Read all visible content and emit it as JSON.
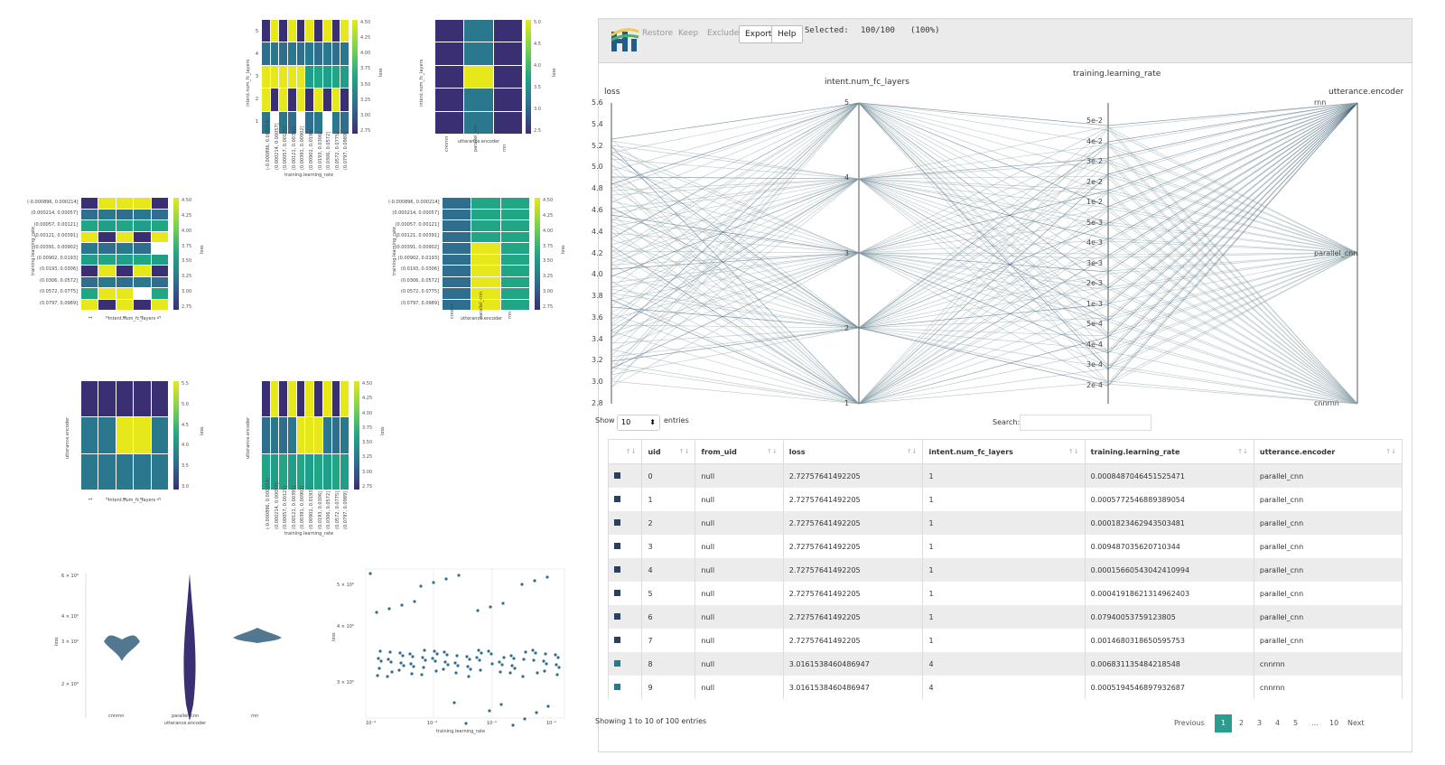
{
  "left_panels": {
    "p1": {
      "ylabel": "intent.num_fc_layers",
      "xlabel": "training.learning_rate",
      "cbar_label": "loss",
      "cbar_ticks": [
        "4.50",
        "4.25",
        "4.00",
        "3.75",
        "3.50",
        "3.25",
        "3.00",
        "2.75"
      ],
      "yticks": [
        "5",
        "4",
        "3",
        "2",
        "1"
      ],
      "xticks": [
        "(-0.000896, 0.000214]",
        "(0.000214, 0.00057]",
        "(0.00057, 0.00121]",
        "(0.00121, 0.00391]",
        "(0.00391, 0.00902]",
        "(0.00902, 0.0193]",
        "(0.0193, 0.0306]",
        "(0.0306, 0.0572]",
        "(0.0572, 0.0775]",
        "(0.0797, 0.0989]"
      ]
    },
    "p2": {
      "ylabel": "intent.num_fc_layers",
      "xlabel": "utterance.encoder",
      "cbar_label": "loss",
      "cbar_ticks": [
        "5.0",
        "4.5",
        "4.0",
        "3.5",
        "3.0",
        "2.5"
      ],
      "yticks": [
        "5",
        "4",
        "3",
        "2",
        "1"
      ],
      "xticks": [
        "cnnrnn",
        "parallel_cnn",
        "rnn"
      ]
    },
    "p3": {
      "ylabel": "training.learning_rate",
      "xlabel": "intent.num_fc_layers",
      "cbar_label": "loss",
      "cbar_ticks": [
        "4.50",
        "4.25",
        "4.00",
        "3.75",
        "3.50",
        "3.25",
        "3.00",
        "2.75"
      ],
      "yticks": [
        "(-0.000896, 0.000214]",
        "(0.000214, 0.00057]",
        "(0.00057, 0.00121]",
        "(0.00121, 0.00391]",
        "(0.00391, 0.00902]",
        "(0.00902, 0.0193]",
        "(0.0193, 0.0306]",
        "(0.0306, 0.0572]",
        "(0.0572, 0.0775]",
        "(0.0797, 0.0989]"
      ],
      "xticks": [
        "1",
        "2",
        "3",
        "4",
        "5"
      ]
    },
    "p4": {
      "ylabel": "training.learning_rate",
      "xlabel": "utterance.encoder",
      "cbar_label": "loss",
      "cbar_ticks": [
        "4.50",
        "4.25",
        "4.00",
        "3.75",
        "3.50",
        "3.25",
        "3.00",
        "2.75"
      ],
      "yticks": [
        "(-0.000896, 0.000214]",
        "(0.000214, 0.00057]",
        "(0.00057, 0.00121]",
        "(0.00121, 0.00391]",
        "(0.00391, 0.00902]",
        "(0.00902, 0.0193]",
        "(0.0193, 0.0306]",
        "(0.0306, 0.0572]",
        "(0.0572, 0.0775]",
        "(0.0797, 0.0989]"
      ],
      "xticks": [
        "cnnrnn",
        "parallel_cnn",
        "rnn"
      ]
    },
    "p5": {
      "ylabel": "utterance.encoder",
      "xlabel": "intent.num_fc_layers",
      "cbar_label": "loss",
      "cbar_ticks": [
        "5.5",
        "5.0",
        "4.5",
        "4.0",
        "3.5",
        "3.0"
      ],
      "yticks": [
        "cnnrnn",
        "parallel_cnn",
        "rnn"
      ],
      "xticks": [
        "1",
        "2",
        "3",
        "4",
        "5"
      ]
    },
    "p6": {
      "ylabel": "utterance.encoder",
      "xlabel": "training.learning_rate",
      "cbar_label": "loss",
      "cbar_ticks": [
        "4.50",
        "4.25",
        "4.00",
        "3.75",
        "3.50",
        "3.25",
        "3.00",
        "2.75"
      ],
      "yticks": [
        "cnnrnn",
        "parallel_cnn",
        "rnn"
      ],
      "xticks": [
        "(-0.000896, 0.000214]",
        "(0.000214, 0.00057]",
        "(0.00057, 0.00121]",
        "(0.00121, 0.00391]",
        "(0.00391, 0.00902]",
        "(0.00902, 0.0193]",
        "(0.0193, 0.0306]",
        "(0.0306, 0.0572]",
        "(0.0572, 0.0775]",
        "(0.0797, 0.0989]"
      ]
    },
    "violin": {
      "ylabel": "loss",
      "xlabel": "utterance.encoder",
      "yticks": [
        "6 × 10⁰",
        "4 × 10⁰",
        "3 × 10⁰",
        "2 × 10⁰"
      ],
      "xticks": [
        "cnnrnn",
        "parallel_cnn",
        "rnn"
      ]
    },
    "scatter": {
      "ylabel": "loss",
      "xlabel": "training.learning_rate",
      "yticks": [
        "5 × 10⁰",
        "4 × 10⁰",
        "3 × 10⁰"
      ],
      "xticks": [
        "10⁻⁴",
        "10⁻³",
        "10⁻²",
        "10⁻¹"
      ]
    }
  },
  "chart_data": [
    {
      "type": "heatmap",
      "xlabel": "training.learning_rate",
      "ylabel": "intent.num_fc_layers",
      "rows": 5,
      "cols": 10
    },
    {
      "type": "heatmap",
      "xlabel": "utterance.encoder",
      "ylabel": "intent.num_fc_layers",
      "x": [
        "cnnrnn",
        "parallel_cnn",
        "rnn"
      ],
      "y": [
        "5",
        "4",
        "3",
        "2",
        "1"
      ]
    },
    {
      "type": "heatmap",
      "xlabel": "intent.num_fc_layers",
      "ylabel": "training.learning_rate",
      "rows": 10,
      "cols": 5
    },
    {
      "type": "heatmap",
      "xlabel": "utterance.encoder",
      "ylabel": "training.learning_rate",
      "rows": 10,
      "cols": 3
    },
    {
      "type": "heatmap",
      "xlabel": "intent.num_fc_layers",
      "ylabel": "utterance.encoder",
      "rows": 3,
      "cols": 5
    },
    {
      "type": "heatmap",
      "xlabel": "training.learning_rate",
      "ylabel": "utterance.encoder",
      "rows": 3,
      "cols": 10
    }
  ],
  "toolbar": {
    "restore": "Restore",
    "keep": "Keep",
    "exclude": "Exclude",
    "export": "Export",
    "help": "Help",
    "selected_label": "Selected:",
    "selected_count": "100/100",
    "selected_pct": "(100%)"
  },
  "parallel": {
    "axes": [
      {
        "title": "loss",
        "ticks": [
          "5.6",
          "5.4",
          "5.2",
          "5.0",
          "4.8",
          "4.6",
          "4.4",
          "4.2",
          "4.0",
          "3.8",
          "3.6",
          "3.4",
          "3.2",
          "3.0",
          "2.8"
        ]
      },
      {
        "title": "intent.num_fc_layers",
        "ticks": [
          "5",
          "4",
          "3",
          "2",
          "1"
        ]
      },
      {
        "title": "training.learning_rate",
        "ticks": [
          "5e-2",
          "4e-2",
          "3e-2",
          "2e-2",
          "1e-2",
          "5e-3",
          "4e-3",
          "3e-3",
          "2e-3",
          "1e-3",
          "5e-4",
          "4e-4",
          "3e-4",
          "2e-4"
        ]
      },
      {
        "title": "utterance.encoder",
        "ticks": [
          "rnn",
          "parallel_cnn",
          "cnnrnn"
        ]
      }
    ]
  },
  "table_controls": {
    "show": "Show",
    "entries_value": "10",
    "entries": "entries",
    "search": "Search:"
  },
  "table": {
    "headers": [
      "",
      "uid",
      "from_uid",
      "loss",
      "intent.num_fc_layers",
      "training.learning_rate",
      "utterance.encoder"
    ],
    "rows": [
      [
        "0",
        "null",
        "2.72757641492205",
        "1",
        "0.0008487046451525471",
        "parallel_cnn"
      ],
      [
        "1",
        "null",
        "2.72757641492205",
        "1",
        "0.0005772546889389054",
        "parallel_cnn"
      ],
      [
        "2",
        "null",
        "2.72757641492205",
        "1",
        "0.00018234629435034 81",
        "parallel_cnn"
      ],
      [
        "3",
        "null",
        "2.72757641492205",
        "1",
        "0.00948703562071 0344",
        "parallel_cnn"
      ],
      [
        "4",
        "null",
        "2.72757641492205",
        "1",
        "0.00015660543042410994",
        "parallel_cnn"
      ],
      [
        "5",
        "null",
        "2.72757641492205",
        "1",
        "0.00041918621314962403",
        "parallel_cnn"
      ],
      [
        "6",
        "null",
        "2.72757641492205",
        "1",
        "0.07940053759123805",
        "parallel_cnn"
      ],
      [
        "7",
        "null",
        "2.72757641492205",
        "1",
        "0.0014680318650595753",
        "parallel_cnn"
      ],
      [
        "8",
        "null",
        "3.0161538460486947",
        "4",
        "0.00683113548421 8548",
        "cnnrnn"
      ],
      [
        "9",
        "null",
        "3.0161538460486947",
        "4",
        "0.00051945468979 32687",
        "cnnrnn"
      ]
    ],
    "footer": "Showing 1 to 10 of 100 entries"
  },
  "pagination": {
    "previous": "Previous",
    "pages": [
      "1",
      "2",
      "3",
      "4",
      "5",
      "…",
      "10"
    ],
    "next": "Next"
  }
}
